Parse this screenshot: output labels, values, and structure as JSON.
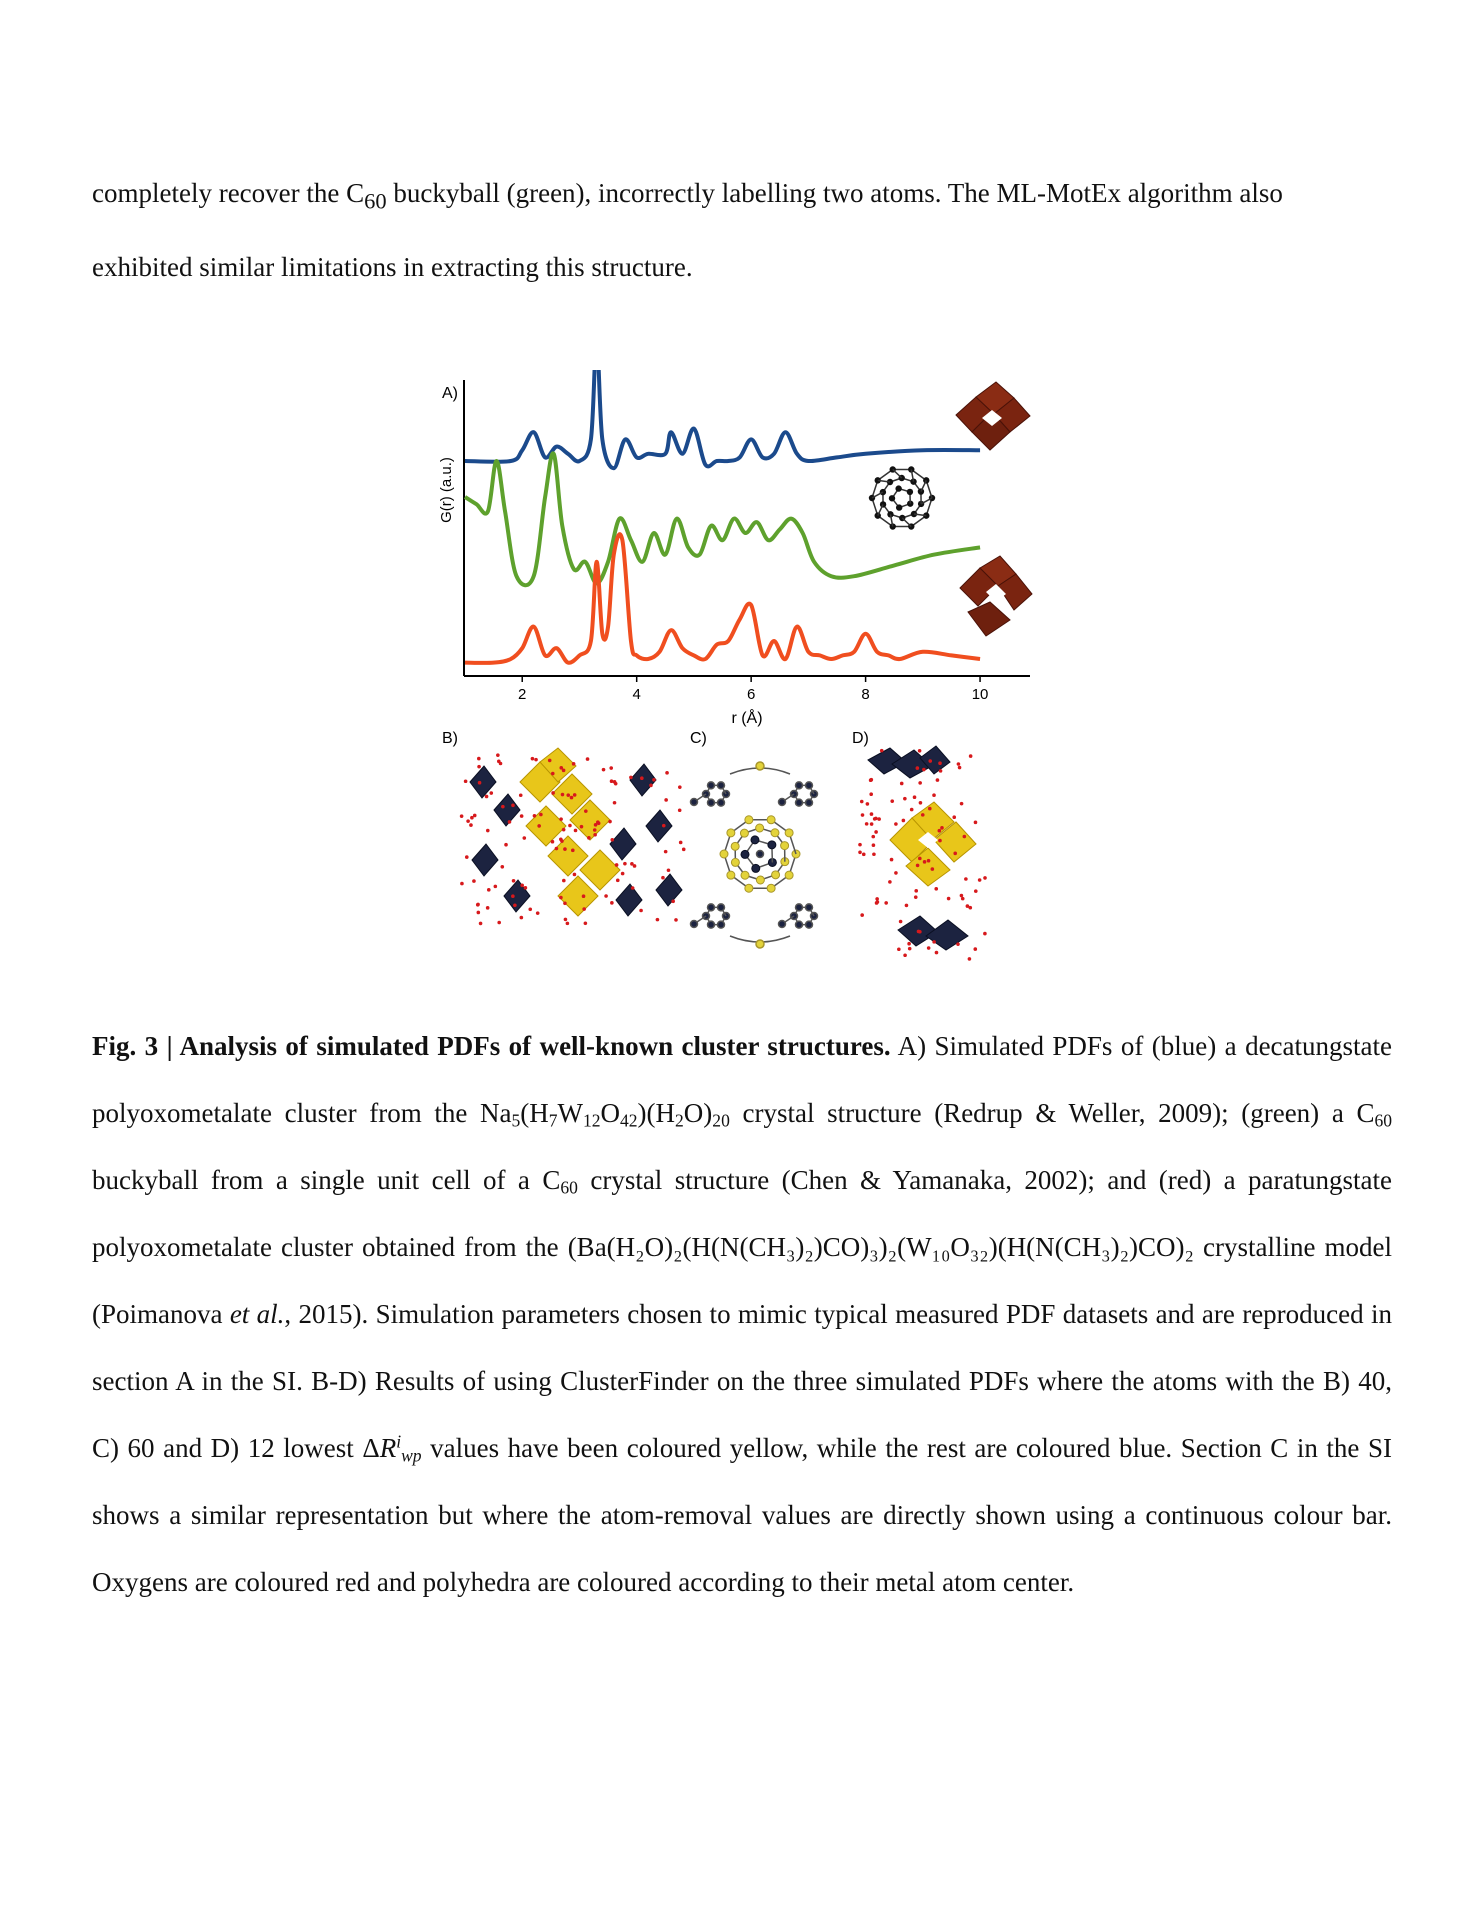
{
  "intro": {
    "line1": "completely recover the C",
    "line1_sub": "60",
    "line1_rest": " buckyball (green), incorrectly labelling two atoms. The ML-MotEx algorithm also",
    "line2": "exhibited similar limitations in extracting this structure."
  },
  "figure": {
    "panels": {
      "a": "A)",
      "b": "B)",
      "c": "C)",
      "d": "D)"
    },
    "ylabel": "G(r) (a.u.)",
    "xlabel": "r (Å)",
    "xticks": [
      "2",
      "4",
      "6",
      "8",
      "10"
    ]
  },
  "chart_data": {
    "type": "line",
    "xlabel": "r (Å)",
    "ylabel": "G(r) (a.u.)",
    "xlim": [
      1,
      10
    ],
    "xticks": [
      2,
      4,
      6,
      8,
      10
    ],
    "legend": "none",
    "grid": false,
    "series": [
      {
        "color": "#1b4a8c",
        "offset": 2.0,
        "x": [
          1.0,
          1.8,
          2.0,
          2.2,
          2.4,
          2.6,
          2.8,
          3.0,
          3.2,
          3.3,
          3.4,
          3.6,
          3.8,
          4.0,
          4.2,
          4.5,
          4.6,
          4.8,
          5.0,
          5.2,
          5.4,
          5.6,
          5.8,
          6.0,
          6.2,
          6.4,
          6.6,
          6.8,
          7.0,
          7.5,
          8.0,
          9.0,
          10.0
        ],
        "y": [
          0.0,
          0.0,
          0.15,
          0.4,
          0.05,
          0.2,
          0.1,
          0.0,
          0.3,
          1.7,
          0.3,
          -0.1,
          0.3,
          0.05,
          0.1,
          0.1,
          0.4,
          0.1,
          0.45,
          -0.05,
          0.0,
          0.0,
          0.05,
          0.3,
          0.05,
          0.1,
          0.4,
          0.1,
          0.0,
          0.05,
          0.1,
          0.15,
          0.15
        ]
      },
      {
        "color": "#5ea12d",
        "offset": 1.0,
        "x": [
          1.0,
          1.2,
          1.4,
          1.55,
          1.7,
          1.9,
          2.2,
          2.4,
          2.55,
          2.7,
          2.9,
          3.1,
          3.3,
          3.5,
          3.7,
          3.9,
          4.1,
          4.3,
          4.5,
          4.7,
          4.9,
          5.1,
          5.3,
          5.5,
          5.7,
          5.9,
          6.1,
          6.3,
          6.5,
          6.7,
          6.9,
          7.1,
          7.4,
          7.8,
          8.5,
          9.2,
          10.0
        ],
        "y": [
          0.5,
          0.4,
          0.3,
          1.0,
          0.3,
          -0.6,
          -0.6,
          0.5,
          1.1,
          0.1,
          -0.5,
          -0.4,
          -0.7,
          -0.4,
          0.2,
          -0.1,
          -0.4,
          0.0,
          -0.3,
          0.2,
          -0.2,
          -0.3,
          0.1,
          -0.1,
          0.2,
          0.0,
          0.15,
          -0.1,
          0.05,
          0.2,
          0.0,
          -0.4,
          -0.6,
          -0.6,
          -0.45,
          -0.3,
          -0.2
        ]
      },
      {
        "color": "#f04e1f",
        "offset": 0.0,
        "x": [
          1.0,
          1.5,
          1.8,
          2.0,
          2.2,
          2.4,
          2.6,
          2.8,
          3.0,
          3.2,
          3.3,
          3.4,
          3.5,
          3.6,
          3.75,
          3.9,
          4.0,
          4.2,
          4.4,
          4.6,
          4.8,
          5.0,
          5.2,
          5.4,
          5.6,
          5.8,
          6.0,
          6.2,
          6.4,
          6.6,
          6.8,
          7.0,
          7.2,
          7.4,
          7.6,
          7.8,
          8.0,
          8.2,
          8.4,
          8.6,
          9.0,
          9.5,
          10.0
        ],
        "y": [
          -0.8,
          -0.8,
          -0.75,
          -0.6,
          -0.3,
          -0.7,
          -0.6,
          -0.8,
          -0.7,
          -0.5,
          0.6,
          -0.4,
          -0.3,
          0.7,
          0.9,
          -0.5,
          -0.7,
          -0.75,
          -0.65,
          -0.35,
          -0.6,
          -0.7,
          -0.75,
          -0.55,
          -0.5,
          -0.2,
          0.0,
          -0.7,
          -0.5,
          -0.75,
          -0.3,
          -0.65,
          -0.7,
          -0.75,
          -0.7,
          -0.65,
          -0.4,
          -0.65,
          -0.7,
          -0.75,
          -0.65,
          -0.7,
          -0.75
        ]
      }
    ]
  },
  "caption": {
    "head": "Fig. 3 | Analysis of simulated PDFs of well-known cluster structures.",
    "s1": " A) Simulated PDFs of (blue) a decatungstate polyoxometalate cluster from the Na",
    "f1": [
      "5",
      "(H",
      "7",
      "W",
      "12",
      "O",
      "42",
      ")(H",
      "2",
      "O)",
      "20"
    ],
    "s2": " crystal structure (Redrup & Weller, 2009); (green) a C",
    "c60a": "60",
    "s3": " buckyball from a single unit cell of a C",
    "c60b": "60",
    "s4": " crystal structure (Chen & Yamanaka, 2002); and (red) a paratungstate polyoxometalate cluster obtained from the ",
    "f2": "(Ba(H₂O)₂(H(N(CH₃)₂)CO)₃)₂(W₁₀O₃₂)(H(N(CH₃)₂)CO)₂",
    "s5": " crystalline model (Poimanova ",
    "etal": "et al.",
    "s6": ", 2015). Simulation parameters chosen to mimic typical measured PDF datasets and are reproduced in section A in the SI. B-D) Results of using ClusterFinder on the three simulated PDFs where the atoms with the B) 40, C) 60 and D) 12 lowest Δ",
    "rsym": "R",
    "rsup": "i",
    "rsub": "wp",
    "s7": " values have been coloured yellow, while the rest are coloured blue. Section C in the SI shows a similar representation but where the atom-removal values are directly shown using a continuous colour bar. Oxygens are coloured red and polyhedra are coloured according to their metal atom center."
  }
}
